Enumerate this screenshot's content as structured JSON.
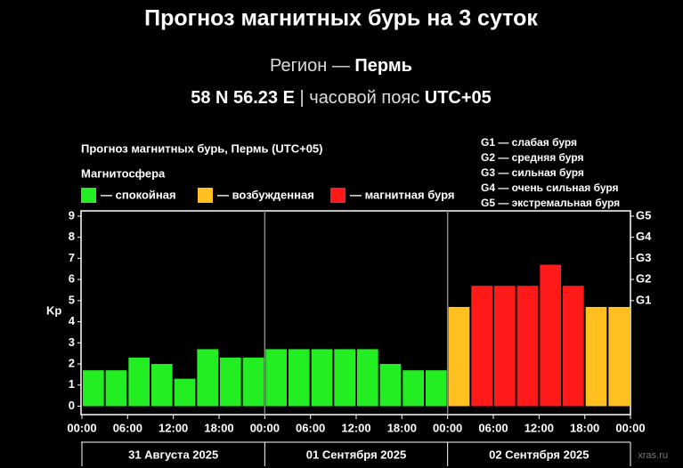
{
  "header": {
    "title": "Прогноз магнитных бурь на 3 суток",
    "region": [
      "Регион —",
      "Пермь"
    ],
    "location": [
      "58 N 56.23 E",
      "| часовой пояс",
      "UTC+05"
    ]
  },
  "watermark": "xras.ru",
  "chart_data": {
    "type": "bar",
    "title": "Прогноз магнитных бурь, Пермь (UTC+05)",
    "legend_title": "Магнитосфера",
    "legend": [
      {
        "label": "— спокойная",
        "color": "#22ee22"
      },
      {
        "label": "— возбужденная",
        "color": "#ffc020"
      },
      {
        "label": "— магнитная буря",
        "color": "#ff1a1a"
      }
    ],
    "storm_scale": [
      "G1 — слабая буря",
      "G2 — средняя буря",
      "G3 — сильная буря",
      "G4 — очень сильная буря",
      "G5 — экстремальная буря"
    ],
    "ylabel": "Kp",
    "x": [
      0,
      3,
      6,
      9,
      12,
      15,
      18,
      21,
      24,
      27,
      30,
      33,
      36,
      39,
      42,
      45,
      48,
      51,
      54,
      57,
      60,
      63,
      66,
      69
    ],
    "values": [
      1.7,
      1.7,
      2.3,
      2.0,
      1.3,
      2.7,
      2.3,
      2.3,
      2.7,
      2.7,
      2.7,
      2.7,
      2.7,
      2.0,
      1.7,
      1.7,
      4.7,
      5.7,
      5.7,
      5.7,
      6.7,
      5.7,
      4.7,
      4.7
    ],
    "colors": [
      "#22ee22",
      "#22ee22",
      "#22ee22",
      "#22ee22",
      "#22ee22",
      "#22ee22",
      "#22ee22",
      "#22ee22",
      "#22ee22",
      "#22ee22",
      "#22ee22",
      "#22ee22",
      "#22ee22",
      "#22ee22",
      "#22ee22",
      "#22ee22",
      "#ffc020",
      "#ff1a1a",
      "#ff1a1a",
      "#ff1a1a",
      "#ff1a1a",
      "#ff1a1a",
      "#ffc020",
      "#ffc020"
    ],
    "xlim": [
      0,
      72
    ],
    "xticks": [
      {
        "value": 0,
        "label": "00:00"
      },
      {
        "value": 6,
        "label": "06:00"
      },
      {
        "value": 12,
        "label": "12:00"
      },
      {
        "value": 18,
        "label": "18:00"
      },
      {
        "value": 24,
        "label": "00:00"
      },
      {
        "value": 30,
        "label": "06:00"
      },
      {
        "value": 36,
        "label": "12:00"
      },
      {
        "value": 42,
        "label": "18:00"
      },
      {
        "value": 48,
        "label": "00:00"
      },
      {
        "value": 54,
        "label": "06:00"
      },
      {
        "value": 60,
        "label": "12:00"
      },
      {
        "value": 66,
        "label": "18:00"
      },
      {
        "value": 72,
        "label": "00:00"
      }
    ],
    "day_separators": [
      24,
      48
    ],
    "day_labels": [
      "31 Августа 2025",
      "01 Сентября 2025",
      "02 Сентября 2025"
    ],
    "ylim": [
      -0.4,
      9.25
    ],
    "yticks": [
      0,
      1,
      2,
      3,
      4,
      5,
      6,
      7,
      8,
      9
    ],
    "y2lim": [
      -0.4,
      9.25
    ],
    "y2ticks": [
      {
        "value": 5,
        "label": "G1"
      },
      {
        "value": 6,
        "label": "G2"
      },
      {
        "value": 7,
        "label": "G3"
      },
      {
        "value": 8,
        "label": "G4"
      },
      {
        "value": 9,
        "label": "G5"
      }
    ]
  }
}
